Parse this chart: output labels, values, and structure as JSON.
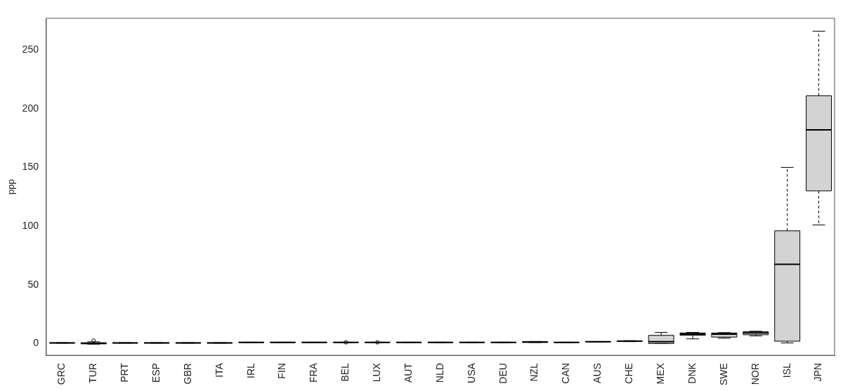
{
  "chart_data": {
    "type": "box",
    "ylabel": "ppp",
    "categories": [
      "GRC",
      "TUR",
      "PRT",
      "ESP",
      "GBR",
      "ITA",
      "IRL",
      "FIN",
      "FRA",
      "BEL",
      "LUX",
      "AUT",
      "NLD",
      "USA",
      "DEU",
      "NZL",
      "CAN",
      "AUS",
      "CHE",
      "MEX",
      "DNK",
      "SWE",
      "NOR",
      "ISL",
      "JPN"
    ],
    "boxes": [
      {
        "low": 0.3,
        "q1": 0.4,
        "median": 0.5,
        "q3": 0.6,
        "high": 0.7
      },
      {
        "low": -0.5,
        "q1": -0.3,
        "median": 0.2,
        "q3": 0.7,
        "high": 1.5,
        "outliers": [
          2.5
        ]
      },
      {
        "low": 0.3,
        "q1": 0.4,
        "median": 0.5,
        "q3": 0.6,
        "high": 0.7
      },
      {
        "low": 0.3,
        "q1": 0.4,
        "median": 0.5,
        "q3": 0.6,
        "high": 0.7
      },
      {
        "low": 0.3,
        "q1": 0.4,
        "median": 0.5,
        "q3": 0.6,
        "high": 0.7
      },
      {
        "low": 0.3,
        "q1": 0.4,
        "median": 0.5,
        "q3": 0.6,
        "high": 0.7
      },
      {
        "low": 0.8,
        "q1": 0.9,
        "median": 1,
        "q3": 1.1,
        "high": 1.2
      },
      {
        "low": 0.8,
        "q1": 0.9,
        "median": 1,
        "q3": 1.1,
        "high": 1.2
      },
      {
        "low": 0.8,
        "q1": 0.9,
        "median": 1,
        "q3": 1.1,
        "high": 1.2
      },
      {
        "low": 0.8,
        "q1": 0.9,
        "median": 1,
        "q3": 1.1,
        "high": 1.2,
        "outliers": [
          1
        ]
      },
      {
        "low": 0.8,
        "q1": 0.9,
        "median": 1,
        "q3": 1.1,
        "high": 1.2,
        "outliers": [
          1
        ]
      },
      {
        "low": 0.8,
        "q1": 0.9,
        "median": 1,
        "q3": 1.1,
        "high": 1.2
      },
      {
        "low": 0.8,
        "q1": 0.9,
        "median": 1,
        "q3": 1.1,
        "high": 1.2
      },
      {
        "low": 0.8,
        "q1": 0.9,
        "median": 1,
        "q3": 1.1,
        "high": 1.2
      },
      {
        "low": 0.8,
        "q1": 0.9,
        "median": 1,
        "q3": 1.1,
        "high": 1.2
      },
      {
        "low": 0.9,
        "q1": 1,
        "median": 1.3,
        "q3": 1.6,
        "high": 1.8
      },
      {
        "low": 0.8,
        "q1": 0.9,
        "median": 1,
        "q3": 1.1,
        "high": 1.2
      },
      {
        "low": 1.3,
        "q1": 1.4,
        "median": 1.5,
        "q3": 1.6,
        "high": 1.7
      },
      {
        "low": 1.6,
        "q1": 1.8,
        "median": 2,
        "q3": 2.3,
        "high": 2.5
      },
      {
        "low": 0,
        "q1": 0,
        "median": 1.5,
        "q3": 7,
        "high": 9.5
      },
      {
        "low": 4,
        "q1": 7,
        "median": 8,
        "q3": 9,
        "high": 9.5
      },
      {
        "low": 4.5,
        "q1": 5.5,
        "median": 8,
        "q3": 9,
        "high": 9.3
      },
      {
        "low": 6.5,
        "q1": 7.5,
        "median": 9,
        "q3": 10,
        "high": 10.5
      },
      {
        "low": 0.5,
        "q1": 2,
        "median": 67.5,
        "q3": 96,
        "high": 150
      },
      {
        "low": 101,
        "q1": 130,
        "median": 182,
        "q3": 211,
        "high": 266
      }
    ],
    "ylim": [
      -10,
      277
    ],
    "yticks": [
      0,
      50,
      100,
      150,
      200,
      250
    ],
    "color": "#d3d3d3"
  }
}
